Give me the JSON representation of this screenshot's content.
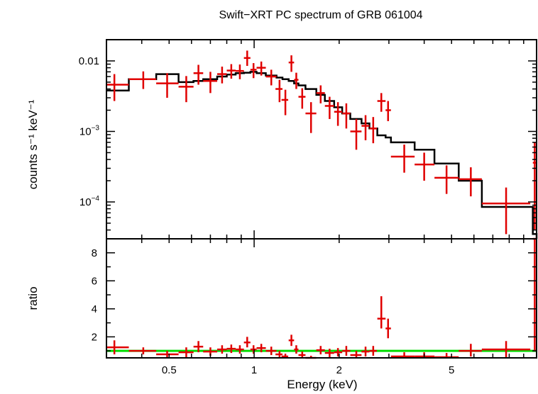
{
  "chart_data": {
    "type": "scatter",
    "title": "Swift−XRT PC spectrum of GRB 061004",
    "xlabel": "Energy (keV)",
    "x_scale": "log",
    "xlim": [
      0.3,
      10
    ],
    "x_ticks": [
      "0.5",
      "1",
      "2",
      "5"
    ],
    "colors": {
      "data": "#e00000",
      "model": "#000000",
      "unity": "#00dd00"
    },
    "top_panel": {
      "ylabel": "counts s⁻¹ keV⁻¹",
      "y_scale": "log",
      "ylim": [
        3e-05,
        0.02
      ],
      "y_ticks": [
        {
          "value": 0.01,
          "base": "0.01",
          "exp": ""
        },
        {
          "value": 0.001,
          "base": "10",
          "exp": "−3"
        },
        {
          "value": 0.0001,
          "base": "10",
          "exp": "−4"
        }
      ],
      "data": [
        {
          "x": 0.32,
          "xlo": 0.3,
          "xhi": 0.36,
          "y": 0.0046,
          "ylo": 0.0027,
          "yhi": 0.0065
        },
        {
          "x": 0.405,
          "xlo": 0.36,
          "xhi": 0.45,
          "y": 0.0055,
          "ylo": 0.004,
          "yhi": 0.0071
        },
        {
          "x": 0.492,
          "xlo": 0.45,
          "xhi": 0.54,
          "y": 0.0048,
          "ylo": 0.003,
          "yhi": 0.0067
        },
        {
          "x": 0.575,
          "xlo": 0.54,
          "xhi": 0.61,
          "y": 0.0043,
          "ylo": 0.0026,
          "yhi": 0.0061
        },
        {
          "x": 0.635,
          "xlo": 0.61,
          "xhi": 0.66,
          "y": 0.0067,
          "ylo": 0.0046,
          "yhi": 0.0088
        },
        {
          "x": 0.7,
          "xlo": 0.66,
          "xhi": 0.74,
          "y": 0.0052,
          "ylo": 0.0035,
          "yhi": 0.007
        },
        {
          "x": 0.77,
          "xlo": 0.74,
          "xhi": 0.8,
          "y": 0.0065,
          "ylo": 0.0048,
          "yhi": 0.0083
        },
        {
          "x": 0.83,
          "xlo": 0.8,
          "xhi": 0.86,
          "y": 0.0073,
          "ylo": 0.0056,
          "yhi": 0.009
        },
        {
          "x": 0.89,
          "xlo": 0.86,
          "xhi": 0.92,
          "y": 0.0072,
          "ylo": 0.0055,
          "yhi": 0.0089
        },
        {
          "x": 0.945,
          "xlo": 0.92,
          "xhi": 0.97,
          "y": 0.011,
          "ylo": 0.0085,
          "yhi": 0.014
        },
        {
          "x": 0.995,
          "xlo": 0.97,
          "xhi": 1.02,
          "y": 0.0075,
          "ylo": 0.0057,
          "yhi": 0.0093
        },
        {
          "x": 1.06,
          "xlo": 1.02,
          "xhi": 1.1,
          "y": 0.008,
          "ylo": 0.0062,
          "yhi": 0.0098
        },
        {
          "x": 1.15,
          "xlo": 1.1,
          "xhi": 1.2,
          "y": 0.006,
          "ylo": 0.0045,
          "yhi": 0.0075
        },
        {
          "x": 1.23,
          "xlo": 1.19,
          "xhi": 1.26,
          "y": 0.004,
          "ylo": 0.0026,
          "yhi": 0.0054
        },
        {
          "x": 1.29,
          "xlo": 1.25,
          "xhi": 1.32,
          "y": 0.0028,
          "ylo": 0.0017,
          "yhi": 0.0039
        },
        {
          "x": 1.355,
          "xlo": 1.325,
          "xhi": 1.385,
          "y": 0.0095,
          "ylo": 0.007,
          "yhi": 0.012
        },
        {
          "x": 1.41,
          "xlo": 1.385,
          "xhi": 1.435,
          "y": 0.0054,
          "ylo": 0.004,
          "yhi": 0.0068
        },
        {
          "x": 1.48,
          "xlo": 1.435,
          "xhi": 1.52,
          "y": 0.0031,
          "ylo": 0.0021,
          "yhi": 0.0041
        },
        {
          "x": 1.59,
          "xlo": 1.52,
          "xhi": 1.66,
          "y": 0.0018,
          "ylo": 0.00095,
          "yhi": 0.0026
        },
        {
          "x": 1.72,
          "xlo": 1.66,
          "xhi": 1.78,
          "y": 0.0035,
          "ylo": 0.0025,
          "yhi": 0.0045
        },
        {
          "x": 1.85,
          "xlo": 1.78,
          "xhi": 1.92,
          "y": 0.0023,
          "ylo": 0.0015,
          "yhi": 0.0031
        },
        {
          "x": 1.98,
          "xlo": 1.92,
          "xhi": 2.05,
          "y": 0.0019,
          "ylo": 0.0012,
          "yhi": 0.0026
        },
        {
          "x": 2.12,
          "xlo": 2.05,
          "xhi": 2.19,
          "y": 0.0018,
          "ylo": 0.0011,
          "yhi": 0.0025
        },
        {
          "x": 2.3,
          "xlo": 2.19,
          "xhi": 2.4,
          "y": 0.001,
          "ylo": 0.00055,
          "yhi": 0.0015
        },
        {
          "x": 2.48,
          "xlo": 2.4,
          "xhi": 2.56,
          "y": 0.0012,
          "ylo": 0.00075,
          "yhi": 0.0017
        },
        {
          "x": 2.64,
          "xlo": 2.56,
          "xhi": 2.72,
          "y": 0.0011,
          "ylo": 0.00068,
          "yhi": 0.0016
        },
        {
          "x": 2.82,
          "xlo": 2.73,
          "xhi": 2.92,
          "y": 0.0027,
          "ylo": 0.0019,
          "yhi": 0.0035
        },
        {
          "x": 2.98,
          "xlo": 2.92,
          "xhi": 3.05,
          "y": 0.002,
          "ylo": 0.0014,
          "yhi": 0.0027
        },
        {
          "x": 3.4,
          "xlo": 3.05,
          "xhi": 3.7,
          "y": 0.00044,
          "ylo": 0.00026,
          "yhi": 0.00065
        },
        {
          "x": 4.0,
          "xlo": 3.7,
          "xhi": 4.35,
          "y": 0.00034,
          "ylo": 0.0002,
          "yhi": 0.0005
        },
        {
          "x": 4.8,
          "xlo": 4.35,
          "xhi": 5.3,
          "y": 0.00022,
          "ylo": 0.00013,
          "yhi": 0.00033
        },
        {
          "x": 5.85,
          "xlo": 5.3,
          "xhi": 6.4,
          "y": 0.00021,
          "ylo": 0.00012,
          "yhi": 0.00031
        },
        {
          "x": 7.8,
          "xlo": 6.4,
          "xhi": 9.5,
          "y": 9.5e-05,
          "ylo": 3.5e-05,
          "yhi": 0.00016
        },
        {
          "x": 9.85,
          "xlo": 9.7,
          "xhi": 10.0,
          "y": 0.00036,
          "ylo": 4e-05,
          "yhi": 0.0007
        }
      ],
      "model": [
        {
          "e0": 0.3,
          "e1": 0.36,
          "y": 0.0038
        },
        {
          "e0": 0.36,
          "e1": 0.45,
          "y": 0.0055
        },
        {
          "e0": 0.45,
          "e1": 0.54,
          "y": 0.0065
        },
        {
          "e0": 0.54,
          "e1": 0.61,
          "y": 0.005
        },
        {
          "e0": 0.61,
          "e1": 0.66,
          "y": 0.0052
        },
        {
          "e0": 0.66,
          "e1": 0.74,
          "y": 0.0055
        },
        {
          "e0": 0.74,
          "e1": 0.8,
          "y": 0.006
        },
        {
          "e0": 0.8,
          "e1": 0.86,
          "y": 0.0064
        },
        {
          "e0": 0.86,
          "e1": 0.92,
          "y": 0.0067
        },
        {
          "e0": 0.92,
          "e1": 0.97,
          "y": 0.0068
        },
        {
          "e0": 0.97,
          "e1": 1.02,
          "y": 0.007
        },
        {
          "e0": 1.02,
          "e1": 1.1,
          "y": 0.0067
        },
        {
          "e0": 1.1,
          "e1": 1.2,
          "y": 0.0062
        },
        {
          "e0": 1.2,
          "e1": 1.26,
          "y": 0.0058
        },
        {
          "e0": 1.26,
          "e1": 1.325,
          "y": 0.0055
        },
        {
          "e0": 1.325,
          "e1": 1.385,
          "y": 0.0052
        },
        {
          "e0": 1.385,
          "e1": 1.435,
          "y": 0.0048
        },
        {
          "e0": 1.435,
          "e1": 1.52,
          "y": 0.0045
        },
        {
          "e0": 1.52,
          "e1": 1.66,
          "y": 0.004
        },
        {
          "e0": 1.66,
          "e1": 1.78,
          "y": 0.0033
        },
        {
          "e0": 1.78,
          "e1": 1.92,
          "y": 0.0027
        },
        {
          "e0": 1.92,
          "e1": 2.05,
          "y": 0.0022
        },
        {
          "e0": 2.05,
          "e1": 2.19,
          "y": 0.0018
        },
        {
          "e0": 2.19,
          "e1": 2.4,
          "y": 0.0015
        },
        {
          "e0": 2.4,
          "e1": 2.56,
          "y": 0.0013
        },
        {
          "e0": 2.56,
          "e1": 2.73,
          "y": 0.0011
        },
        {
          "e0": 2.73,
          "e1": 2.92,
          "y": 0.00088
        },
        {
          "e0": 2.92,
          "e1": 3.05,
          "y": 0.00082
        },
        {
          "e0": 3.05,
          "e1": 3.7,
          "y": 0.0007
        },
        {
          "e0": 3.7,
          "e1": 4.35,
          "y": 0.00055
        },
        {
          "e0": 4.35,
          "e1": 5.3,
          "y": 0.00035
        },
        {
          "e0": 5.3,
          "e1": 6.4,
          "y": 0.0002
        },
        {
          "e0": 6.4,
          "e1": 9.7,
          "y": 8.5e-05
        },
        {
          "e0": 9.7,
          "e1": 10.0,
          "y": 3.5e-05
        }
      ]
    },
    "bottom_panel": {
      "ylabel": "ratio",
      "y_scale": "linear",
      "ylim": [
        0.5,
        9
      ],
      "y_ticks": [
        "2",
        "4",
        "6",
        "8"
      ],
      "unity_line": 1,
      "data": [
        {
          "x": 0.32,
          "xlo": 0.3,
          "xhi": 0.36,
          "y": 1.25,
          "ylo": 0.75,
          "yhi": 1.75
        },
        {
          "x": 0.405,
          "xlo": 0.36,
          "xhi": 0.45,
          "y": 1.0,
          "ylo": 0.75,
          "yhi": 1.25
        },
        {
          "x": 0.492,
          "xlo": 0.45,
          "xhi": 0.54,
          "y": 0.75,
          "ylo": 0.5,
          "yhi": 1.0
        },
        {
          "x": 0.575,
          "xlo": 0.54,
          "xhi": 0.61,
          "y": 0.9,
          "ylo": 0.55,
          "yhi": 1.25
        },
        {
          "x": 0.635,
          "xlo": 0.61,
          "xhi": 0.66,
          "y": 1.3,
          "ylo": 0.9,
          "yhi": 1.7
        },
        {
          "x": 0.7,
          "xlo": 0.66,
          "xhi": 0.74,
          "y": 0.95,
          "ylo": 0.65,
          "yhi": 1.25
        },
        {
          "x": 0.77,
          "xlo": 0.74,
          "xhi": 0.8,
          "y": 1.1,
          "ylo": 0.8,
          "yhi": 1.4
        },
        {
          "x": 0.83,
          "xlo": 0.8,
          "xhi": 0.86,
          "y": 1.15,
          "ylo": 0.85,
          "yhi": 1.45
        },
        {
          "x": 0.89,
          "xlo": 0.86,
          "xhi": 0.92,
          "y": 1.1,
          "ylo": 0.8,
          "yhi": 1.4
        },
        {
          "x": 0.945,
          "xlo": 0.92,
          "xhi": 0.97,
          "y": 1.6,
          "ylo": 1.25,
          "yhi": 2.0
        },
        {
          "x": 0.995,
          "xlo": 0.97,
          "xhi": 1.02,
          "y": 1.1,
          "ylo": 0.8,
          "yhi": 1.4
        },
        {
          "x": 1.06,
          "xlo": 1.02,
          "xhi": 1.1,
          "y": 1.2,
          "ylo": 0.9,
          "yhi": 1.5
        },
        {
          "x": 1.15,
          "xlo": 1.1,
          "xhi": 1.2,
          "y": 1.0,
          "ylo": 0.7,
          "yhi": 1.3
        },
        {
          "x": 1.23,
          "xlo": 1.19,
          "xhi": 1.26,
          "y": 0.75,
          "ylo": 0.5,
          "yhi": 1.0
        },
        {
          "x": 1.29,
          "xlo": 1.25,
          "xhi": 1.32,
          "y": 0.6,
          "ylo": 0.4,
          "yhi": 0.8
        },
        {
          "x": 1.355,
          "xlo": 1.325,
          "xhi": 1.385,
          "y": 1.75,
          "ylo": 1.35,
          "yhi": 2.15
        },
        {
          "x": 1.41,
          "xlo": 1.385,
          "xhi": 1.435,
          "y": 1.1,
          "ylo": 0.8,
          "yhi": 1.4
        },
        {
          "x": 1.48,
          "xlo": 1.435,
          "xhi": 1.52,
          "y": 0.7,
          "ylo": 0.45,
          "yhi": 0.95
        },
        {
          "x": 1.59,
          "xlo": 1.52,
          "xhi": 1.66,
          "y": 0.45,
          "ylo": 0.25,
          "yhi": 0.65
        },
        {
          "x": 1.72,
          "xlo": 1.66,
          "xhi": 1.78,
          "y": 1.05,
          "ylo": 0.75,
          "yhi": 1.35
        },
        {
          "x": 1.85,
          "xlo": 1.78,
          "xhi": 1.92,
          "y": 0.85,
          "ylo": 0.55,
          "yhi": 1.15
        },
        {
          "x": 1.98,
          "xlo": 1.92,
          "xhi": 2.05,
          "y": 0.9,
          "ylo": 0.6,
          "yhi": 1.2
        },
        {
          "x": 2.12,
          "xlo": 2.05,
          "xhi": 2.19,
          "y": 1.0,
          "ylo": 0.65,
          "yhi": 1.35
        },
        {
          "x": 2.3,
          "xlo": 2.19,
          "xhi": 2.4,
          "y": 0.7,
          "ylo": 0.4,
          "yhi": 1.0
        },
        {
          "x": 2.48,
          "xlo": 2.4,
          "xhi": 2.56,
          "y": 0.95,
          "ylo": 0.6,
          "yhi": 1.3
        },
        {
          "x": 2.64,
          "xlo": 2.56,
          "xhi": 2.72,
          "y": 1.0,
          "ylo": 0.65,
          "yhi": 1.35
        },
        {
          "x": 2.82,
          "xlo": 2.73,
          "xhi": 2.92,
          "y": 3.3,
          "ylo": 2.6,
          "yhi": 4.9
        },
        {
          "x": 2.98,
          "xlo": 2.92,
          "xhi": 3.05,
          "y": 2.6,
          "ylo": 1.9,
          "yhi": 3.3
        },
        {
          "x": 3.4,
          "xlo": 3.05,
          "xhi": 3.7,
          "y": 0.6,
          "ylo": 0.35,
          "yhi": 0.9
        },
        {
          "x": 4.0,
          "xlo": 3.7,
          "xhi": 4.35,
          "y": 0.6,
          "ylo": 0.35,
          "yhi": 0.9
        },
        {
          "x": 4.8,
          "xlo": 4.35,
          "xhi": 5.3,
          "y": 0.55,
          "ylo": 0.3,
          "yhi": 0.85
        },
        {
          "x": 5.85,
          "xlo": 5.3,
          "xhi": 6.4,
          "y": 1.0,
          "ylo": 0.6,
          "yhi": 1.5
        },
        {
          "x": 7.8,
          "xlo": 6.4,
          "xhi": 9.5,
          "y": 1.1,
          "ylo": 0.5,
          "yhi": 1.7
        },
        {
          "x": 9.85,
          "xlo": 9.7,
          "xhi": 10.0,
          "y": 9.0,
          "ylo": 1.0,
          "yhi": 9.0
        }
      ]
    }
  }
}
